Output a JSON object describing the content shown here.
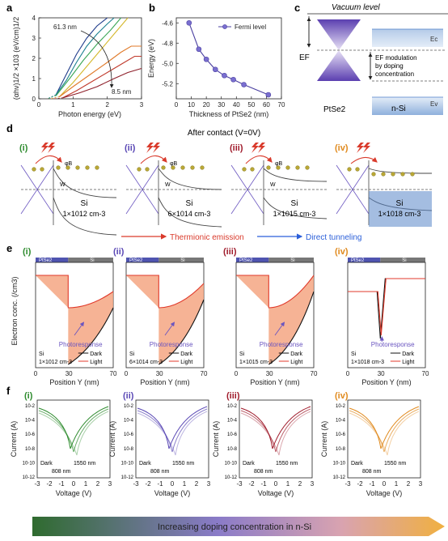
{
  "panels": {
    "a": {
      "label": "a",
      "xlabel": "Photon energy (eV)",
      "ylabel": "(αhν)1/2 ×103 (eV/cm)1/2",
      "xticks": [
        "0",
        "1",
        "2",
        "3"
      ],
      "yticks": [
        "0",
        "1",
        "2",
        "3",
        "4"
      ],
      "ann_top": "61.3 nm",
      "ann_bot": "8.5 nm"
    },
    "b": {
      "label": "b",
      "xlabel": "Thickness of PtSe2 (nm)",
      "ylabel": "Energy (eV)",
      "xticks": [
        "0",
        "10",
        "20",
        "30",
        "40",
        "50",
        "60",
        "70"
      ],
      "yticks": [
        "-4.6",
        "-4.8",
        "-5.0",
        "-5.2"
      ],
      "legend": "Fermi level"
    },
    "c": {
      "label": "c",
      "vacuum": "Vacuum level",
      "ef": "EF",
      "ec": "Ec",
      "ev": "Ev",
      "mod_text": [
        "EF modulation",
        "by doping",
        "concentration"
      ],
      "ptse2": "PtSe2",
      "nsi": "n-Si"
    },
    "d": {
      "label": "d",
      "title": "After contact (V=0V)",
      "subs": [
        {
          "num": "(i)",
          "color": "#2e8b2e",
          "si": "Si",
          "conc": "1×1012 cm-3"
        },
        {
          "num": "(ii)",
          "color": "#5a48b5",
          "si": "Si",
          "conc": "6×1014 cm-3"
        },
        {
          "num": "(iii)",
          "color": "#a01c2c",
          "si": "Si",
          "conc": "1×1015 cm-3"
        },
        {
          "num": "(iv)",
          "color": "#e08a1e",
          "si": "Si",
          "conc": "1×1018 cm-3"
        }
      ],
      "phi": "φB",
      "w": "W",
      "legend_therm": "Thermionic emission",
      "legend_tunnel": "Direct tunneling"
    },
    "e": {
      "label": "e",
      "ylabel": "Electron conc. (/cm3)",
      "xlabel": "Position Y (nm)",
      "xticks": [
        "0",
        "30",
        "70"
      ],
      "ptse2": "PtSe2",
      "si": "Si",
      "dark": "Dark",
      "light": "Light",
      "photo": "Photoresponse",
      "position": "Position Y",
      "subs": [
        {
          "num": "(i)",
          "color": "#2e8b2e",
          "si": "Si",
          "conc": "1×1012 cm-3"
        },
        {
          "num": "(ii)",
          "color": "#5a48b5",
          "si": "Si",
          "conc": "6×1014 cm-3"
        },
        {
          "num": "(iii)",
          "color": "#a01c2c",
          "si": "Si",
          "conc": "1×1015 cm-3"
        },
        {
          "num": "(iv)",
          "color": "#e08a1e",
          "si": "Si",
          "conc": "1×1018 cm-3"
        }
      ]
    },
    "f": {
      "label": "f",
      "ylabel": "Current (A)",
      "xlabel": "Voltage (V)",
      "xticks": [
        "-3",
        "-2",
        "-1",
        "0",
        "1",
        "2",
        "3"
      ],
      "yticks": [
        "10-2",
        "10-4",
        "10-6",
        "10-8",
        "10-10",
        "10-12"
      ],
      "dark": "Dark",
      "w808": "808 nm",
      "w1550": "1550 nm",
      "subs": [
        {
          "num": "(i)",
          "color": "#2e8b2e"
        },
        {
          "num": "(ii)",
          "color": "#5a48b5"
        },
        {
          "num": "(iii)",
          "color": "#a01c2c"
        },
        {
          "num": "(iv)",
          "color": "#e08a1e"
        }
      ]
    }
  },
  "bottom_arrow": "Increasing doping concentration in n-Si",
  "chart_data": [
    {
      "type": "line",
      "panel": "a",
      "xlabel": "Photon energy (eV)",
      "ylabel": "(αhν)1/2 ×103 (eV/cm)1/2",
      "xlim": [
        0,
        3
      ],
      "ylim": [
        0,
        4
      ],
      "series": [
        {
          "color": "#1f3b8a",
          "x": [
            0.5,
            0.8,
            1.1,
            1.4,
            1.7,
            2.0
          ],
          "y": [
            0.2,
            1.2,
            2.2,
            3.0,
            3.6,
            4.0
          ]
        },
        {
          "color": "#1a7f8f",
          "x": [
            0.5,
            0.8,
            1.1,
            1.4,
            1.7,
            2.0,
            2.2
          ],
          "y": [
            0.2,
            0.9,
            1.8,
            2.6,
            3.2,
            3.7,
            4.0
          ]
        },
        {
          "color": "#3aa655",
          "x": [
            0.5,
            0.9,
            1.3,
            1.7,
            2.1,
            2.4
          ],
          "y": [
            0.15,
            1.0,
            1.9,
            2.7,
            3.4,
            4.0
          ]
        },
        {
          "color": "#d4b72a",
          "x": [
            0.6,
            1.0,
            1.4,
            1.8,
            2.2,
            2.6
          ],
          "y": [
            0.1,
            0.8,
            1.6,
            2.4,
            3.2,
            4.0
          ]
        },
        {
          "color": "#e07a2a",
          "x": [
            0.6,
            1.0,
            1.5,
            2.0,
            2.4,
            2.7,
            3.0
          ],
          "y": [
            0.1,
            0.6,
            1.2,
            1.8,
            2.3,
            2.6,
            2.6
          ]
        },
        {
          "color": "#c0392b",
          "x": [
            0.7,
            1.1,
            1.6,
            2.1,
            2.5,
            2.8,
            3.0
          ],
          "y": [
            0.05,
            0.4,
            0.9,
            1.4,
            1.8,
            2.1,
            2.1
          ]
        },
        {
          "color": "#8e1f2a",
          "x": [
            0.7,
            1.2,
            1.7,
            2.2,
            2.6,
            3.0
          ],
          "y": [
            0.05,
            0.3,
            0.6,
            1.0,
            1.3,
            1.5
          ]
        }
      ]
    },
    {
      "type": "line",
      "panel": "b",
      "xlabel": "Thickness of PtSe2 (nm)",
      "ylabel": "Energy (eV)",
      "xlim": [
        0,
        70
      ],
      "ylim": [
        -5.35,
        -4.55
      ],
      "series": [
        {
          "name": "Fermi level",
          "x": [
            8.5,
            15,
            20,
            26,
            32,
            38,
            45,
            61.3
          ],
          "y": [
            -4.6,
            -4.86,
            -4.96,
            -5.06,
            -5.12,
            -5.16,
            -5.21,
            -5.31
          ]
        }
      ]
    }
  ]
}
